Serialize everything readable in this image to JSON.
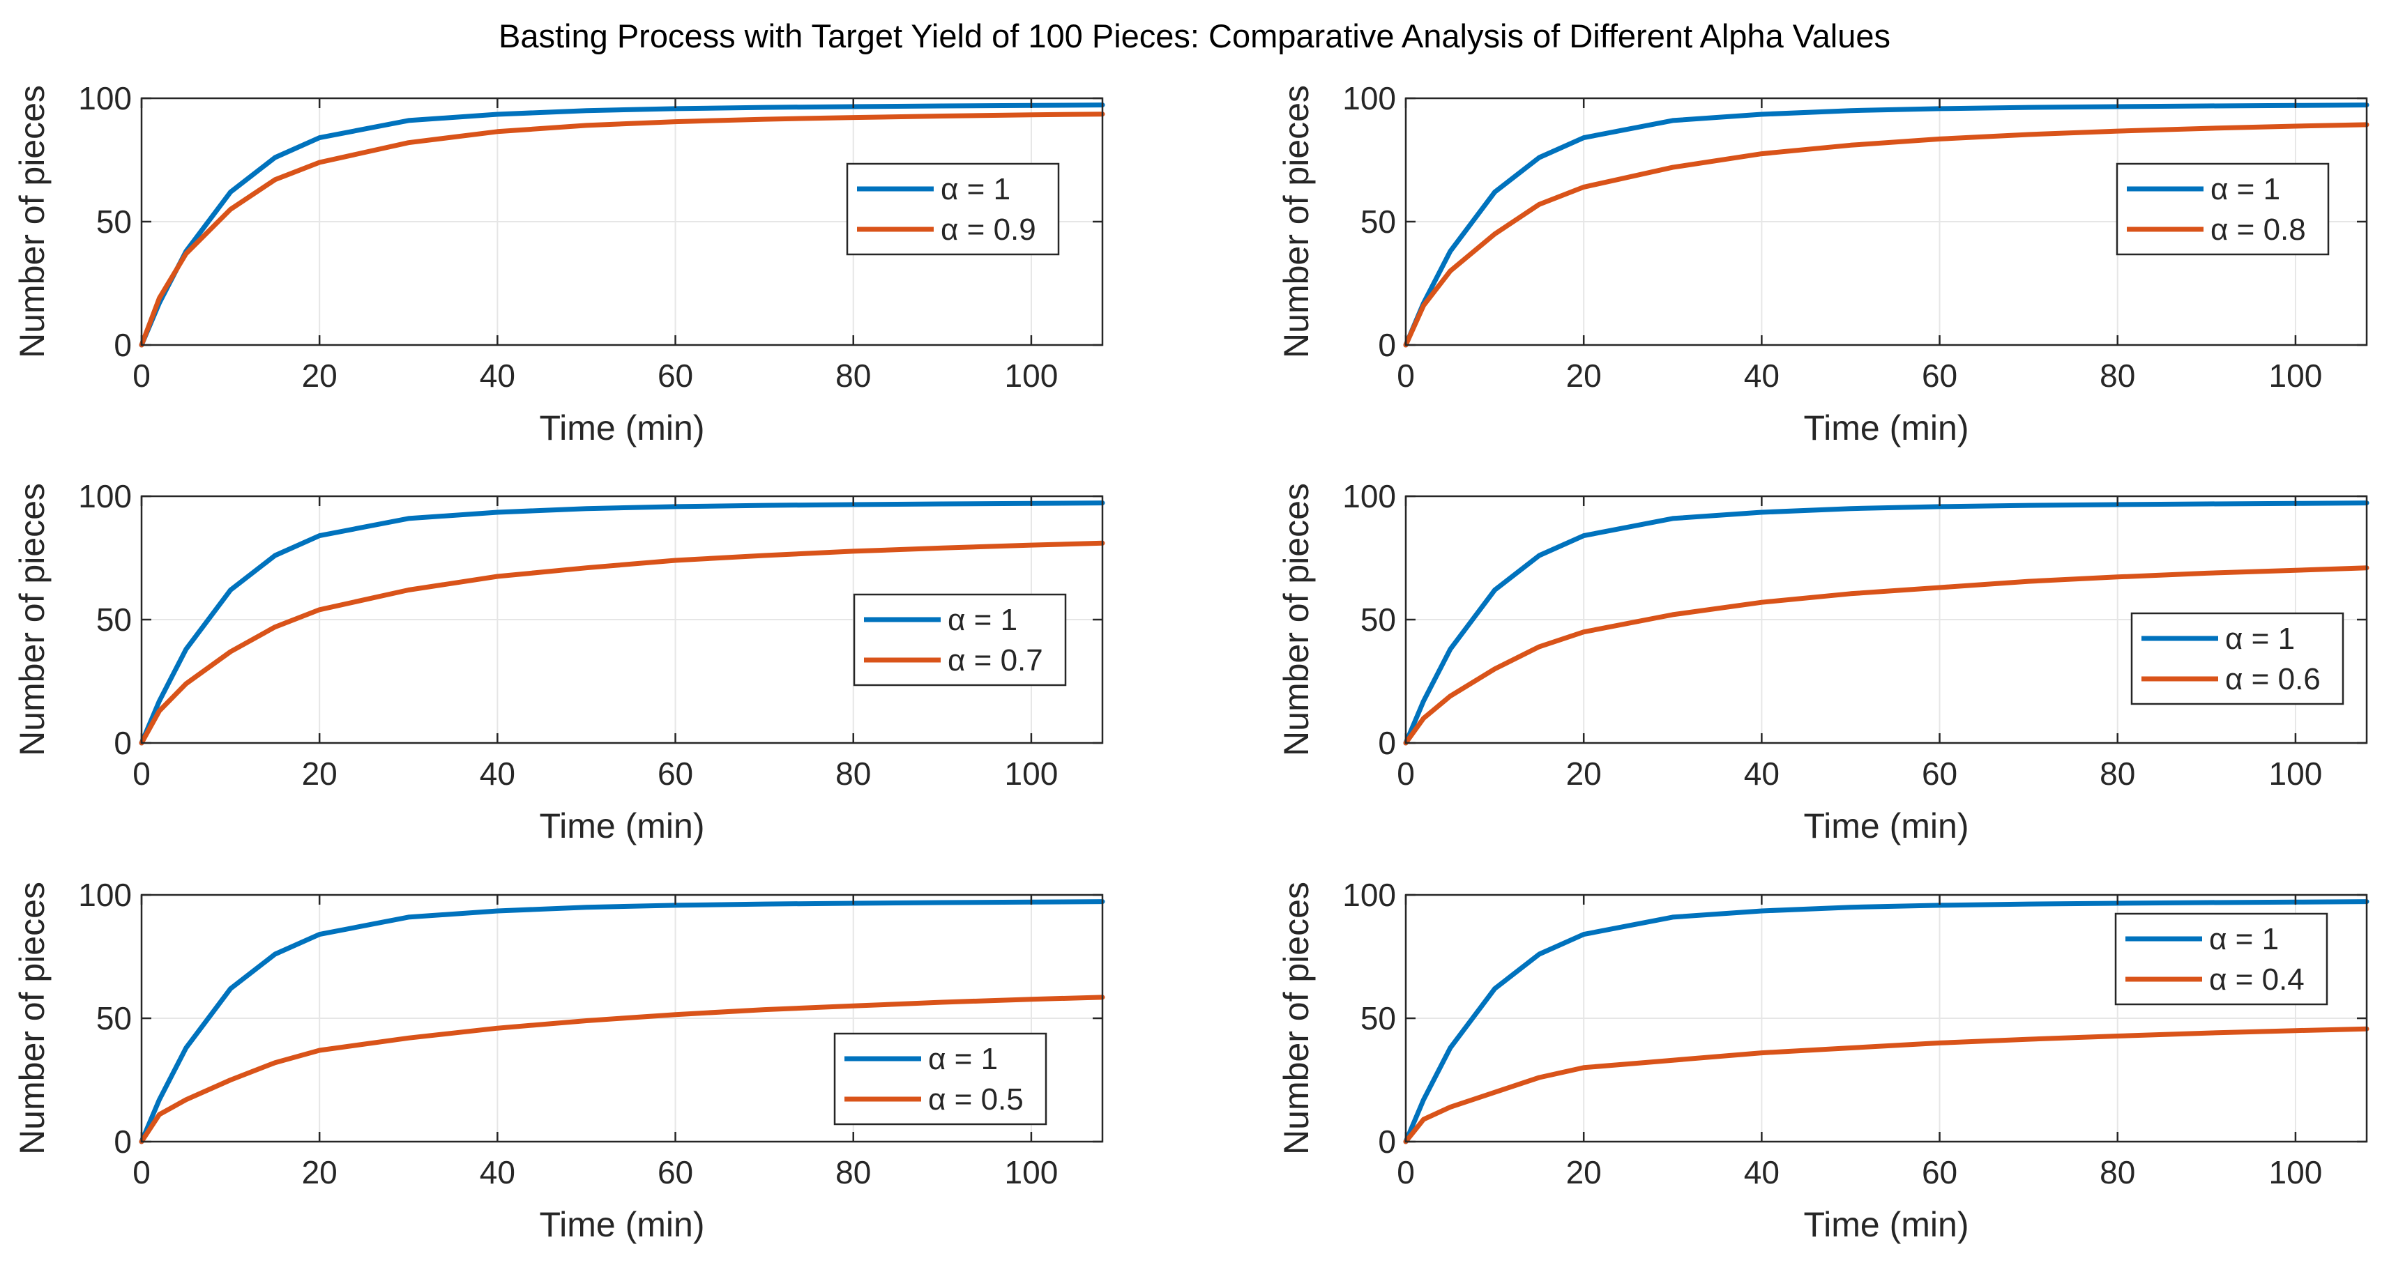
{
  "figure": {
    "title": "Basting Process with Target Yield of 100 Pieces: Comparative Analysis of Different Alpha Values",
    "colors": {
      "reference": "#0072BD",
      "fractional": "#D95319",
      "grid": "#e6e6e6",
      "axis": "#262626"
    }
  },
  "chart_data": [
    {
      "type": "line",
      "panel": "alpha-0.9",
      "xlabel": "Time (min)",
      "ylabel": "Number of pieces",
      "xlim": [
        0,
        108
      ],
      "ylim": [
        0,
        100
      ],
      "xticks": [
        0,
        20,
        40,
        60,
        80,
        100
      ],
      "yticks": [
        0,
        50,
        100
      ],
      "grid": true,
      "legend_position": "middle-right",
      "series": [
        {
          "name": "α = 1",
          "alpha": 1,
          "color": "#0072BD",
          "x": [
            0,
            2,
            5,
            10,
            15,
            20,
            30,
            40,
            50,
            60,
            70,
            80,
            90,
            100,
            108
          ],
          "y": [
            0,
            17,
            38,
            62,
            76,
            84,
            91,
            93.5,
            95,
            95.8,
            96.3,
            96.6,
            96.9,
            97.1,
            97.3
          ]
        },
        {
          "name": "α = 0.9",
          "alpha": 0.9,
          "color": "#D95319",
          "x": [
            0,
            2,
            5,
            10,
            15,
            20,
            30,
            40,
            50,
            60,
            70,
            80,
            90,
            100,
            108
          ],
          "y": [
            0,
            19,
            37,
            55,
            67,
            74,
            82,
            86.5,
            89,
            90.5,
            91.5,
            92.2,
            92.8,
            93.3,
            93.6
          ]
        }
      ]
    },
    {
      "type": "line",
      "panel": "alpha-0.8",
      "xlabel": "Time (min)",
      "ylabel": "Number of pieces",
      "xlim": [
        0,
        108
      ],
      "ylim": [
        0,
        100
      ],
      "xticks": [
        0,
        20,
        40,
        60,
        80,
        100
      ],
      "yticks": [
        0,
        50,
        100
      ],
      "grid": true,
      "legend_position": "top-right",
      "series": [
        {
          "name": "α = 1",
          "alpha": 1,
          "color": "#0072BD",
          "x": [
            0,
            2,
            5,
            10,
            15,
            20,
            30,
            40,
            50,
            60,
            70,
            80,
            90,
            100,
            108
          ],
          "y": [
            0,
            17,
            38,
            62,
            76,
            84,
            91,
            93.5,
            95,
            95.8,
            96.3,
            96.6,
            96.9,
            97.1,
            97.3
          ]
        },
        {
          "name": "α = 0.8",
          "alpha": 0.8,
          "color": "#D95319",
          "x": [
            0,
            2,
            5,
            10,
            15,
            20,
            30,
            40,
            50,
            60,
            70,
            80,
            90,
            100,
            108
          ],
          "y": [
            0,
            16,
            30,
            45,
            57,
            64,
            72,
            77.5,
            81,
            83.5,
            85.3,
            86.7,
            87.8,
            88.7,
            89.3
          ]
        }
      ]
    },
    {
      "type": "line",
      "panel": "alpha-0.7",
      "xlabel": "Time (min)",
      "ylabel": "Number of pieces",
      "xlim": [
        0,
        108
      ],
      "ylim": [
        0,
        100
      ],
      "xticks": [
        0,
        20,
        40,
        60,
        80,
        100
      ],
      "yticks": [
        0,
        50,
        100
      ],
      "grid": true,
      "legend_position": "middle-right",
      "series": [
        {
          "name": "α = 1",
          "alpha": 1,
          "color": "#0072BD",
          "x": [
            0,
            2,
            5,
            10,
            15,
            20,
            30,
            40,
            50,
            60,
            70,
            80,
            90,
            100,
            108
          ],
          "y": [
            0,
            17,
            38,
            62,
            76,
            84,
            91,
            93.5,
            95,
            95.8,
            96.3,
            96.6,
            96.9,
            97.1,
            97.3
          ]
        },
        {
          "name": "α = 0.7",
          "alpha": 0.7,
          "color": "#D95319",
          "x": [
            0,
            2,
            5,
            10,
            15,
            20,
            30,
            40,
            50,
            60,
            70,
            80,
            90,
            100,
            108
          ],
          "y": [
            0,
            13,
            24,
            37,
            47,
            54,
            62,
            67.5,
            71,
            74,
            76,
            77.7,
            79,
            80.2,
            81
          ]
        }
      ]
    },
    {
      "type": "line",
      "panel": "alpha-0.6",
      "xlabel": "Time (min)",
      "ylabel": "Number of pieces",
      "xlim": [
        0,
        108
      ],
      "ylim": [
        0,
        100
      ],
      "xticks": [
        0,
        20,
        40,
        60,
        80,
        100
      ],
      "yticks": [
        0,
        50,
        100
      ],
      "grid": true,
      "legend_position": "lower-right",
      "series": [
        {
          "name": "α = 1",
          "alpha": 1,
          "color": "#0072BD",
          "x": [
            0,
            2,
            5,
            10,
            15,
            20,
            30,
            40,
            50,
            60,
            70,
            80,
            90,
            100,
            108
          ],
          "y": [
            0,
            17,
            38,
            62,
            76,
            84,
            91,
            93.5,
            95,
            95.8,
            96.3,
            96.6,
            96.9,
            97.1,
            97.3
          ]
        },
        {
          "name": "α = 0.6",
          "alpha": 0.6,
          "color": "#D95319",
          "x": [
            0,
            2,
            5,
            10,
            15,
            20,
            30,
            40,
            50,
            60,
            70,
            80,
            90,
            100,
            108
          ],
          "y": [
            0,
            10,
            19,
            30,
            39,
            45,
            52,
            57,
            60.5,
            63,
            65.5,
            67.3,
            68.8,
            70,
            71
          ]
        }
      ]
    },
    {
      "type": "line",
      "panel": "alpha-0.5",
      "xlabel": "Time (min)",
      "ylabel": "Number of pieces",
      "xlim": [
        0,
        108
      ],
      "ylim": [
        0,
        100
      ],
      "xticks": [
        0,
        20,
        40,
        60,
        80,
        100
      ],
      "yticks": [
        0,
        50,
        100
      ],
      "grid": true,
      "legend_position": "bottom-right",
      "series": [
        {
          "name": "α = 1",
          "alpha": 1,
          "color": "#0072BD",
          "x": [
            0,
            2,
            5,
            10,
            15,
            20,
            30,
            40,
            50,
            60,
            70,
            80,
            90,
            100,
            108
          ],
          "y": [
            0,
            17,
            38,
            62,
            76,
            84,
            91,
            93.5,
            95,
            95.8,
            96.3,
            96.6,
            96.9,
            97.1,
            97.3
          ]
        },
        {
          "name": "α = 0.5",
          "alpha": 0.5,
          "color": "#D95319",
          "x": [
            0,
            2,
            5,
            10,
            15,
            20,
            30,
            40,
            50,
            60,
            70,
            80,
            90,
            100,
            108
          ],
          "y": [
            0,
            11,
            17,
            25,
            32,
            37,
            42,
            46,
            49,
            51.5,
            53.5,
            55,
            56.5,
            57.7,
            58.5
          ]
        }
      ]
    },
    {
      "type": "line",
      "panel": "alpha-0.4",
      "xlabel": "Time (min)",
      "ylabel": "Number of pieces",
      "xlim": [
        0,
        108
      ],
      "ylim": [
        0,
        100
      ],
      "xticks": [
        0,
        20,
        40,
        60,
        80,
        100
      ],
      "yticks": [
        0,
        50,
        100
      ],
      "grid": true,
      "legend_position": "top-right",
      "series": [
        {
          "name": "α = 1",
          "alpha": 1,
          "color": "#0072BD",
          "x": [
            0,
            2,
            5,
            10,
            15,
            20,
            30,
            40,
            50,
            60,
            70,
            80,
            90,
            100,
            108
          ],
          "y": [
            0,
            17,
            38,
            62,
            76,
            84,
            91,
            93.5,
            95,
            95.8,
            96.3,
            96.6,
            96.9,
            97.1,
            97.3
          ]
        },
        {
          "name": "α = 0.4",
          "alpha": 0.4,
          "color": "#D95319",
          "x": [
            0,
            2,
            5,
            10,
            15,
            20,
            30,
            40,
            50,
            60,
            70,
            80,
            90,
            100,
            108
          ],
          "y": [
            0,
            9,
            14,
            20,
            26,
            30,
            33,
            36,
            38,
            40,
            41.5,
            42.8,
            44,
            45,
            45.7
          ]
        }
      ]
    }
  ]
}
